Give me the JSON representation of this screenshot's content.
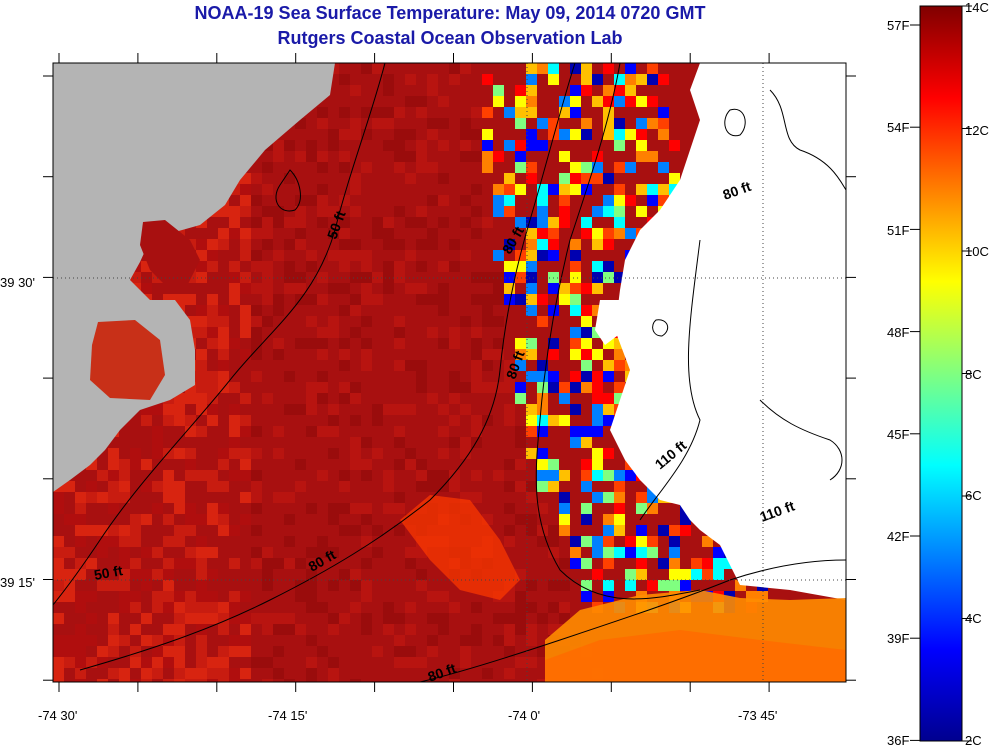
{
  "header": {
    "title": "NOAA-19 Sea Surface Temperature:  May 09, 2014 0720 GMT",
    "subtitle": "Rutgers Coastal Ocean Observation Lab"
  },
  "axes": {
    "longitude_ticks": [
      "-74 30'",
      "-74 15'",
      "-74 0'",
      "-73 45'"
    ],
    "latitude_ticks": [
      "39 30'",
      "39 15'"
    ]
  },
  "contour_labels": [
    "50 ft",
    "50 ft",
    "80 ft",
    "80 ft",
    "80 ft",
    "80 ft",
    "80 ft",
    "110 ft",
    "110 ft"
  ],
  "colorbar": {
    "fahrenheit_labels": [
      "57F",
      "54F",
      "51F",
      "48F",
      "45F",
      "42F",
      "39F",
      "36F"
    ],
    "celsius_labels": [
      "14C",
      "12C",
      "10C",
      "8C",
      "6C",
      "4C",
      "2C"
    ]
  },
  "colors": {
    "land": "#b4b4b4",
    "no_data": "#ffffff",
    "title": "#1a1aa8"
  }
}
